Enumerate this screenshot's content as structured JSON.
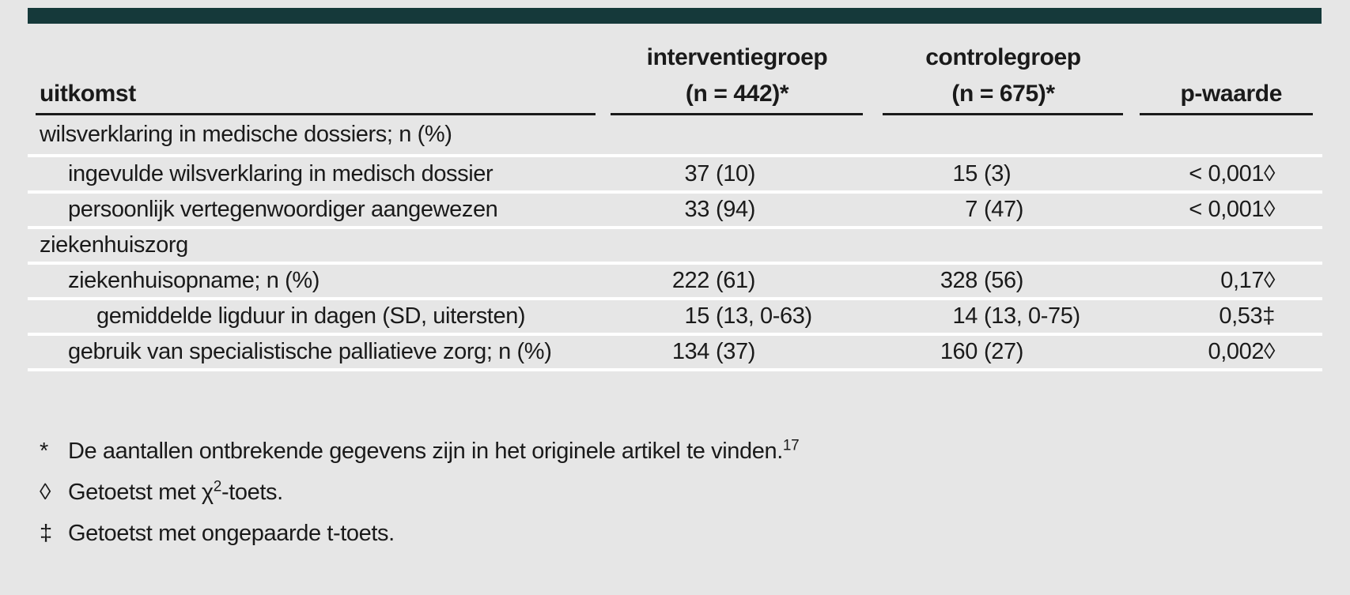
{
  "page": {
    "background_color": "#e6e6e6",
    "accent_bar_color": "#15393a",
    "text_color": "#1a1a1a",
    "row_separator_color": "#ffffff",
    "header_underline_color": "#1a1a1a"
  },
  "table": {
    "columns": {
      "outcome": "uitkomst",
      "intervention_line1": "interventiegroep",
      "intervention_line2": "(n = 442)*",
      "control_line1": "controlegroep",
      "control_line2": "(n = 675)*",
      "p": "p-waarde"
    },
    "rows": [
      {
        "type": "section",
        "indent": 0,
        "label": "wilsverklaring in medische dossiers; n (%)"
      },
      {
        "type": "data",
        "indent": 1,
        "label": "ingevulde wilsverklaring in medisch dossier",
        "i_num": "37",
        "i_paren": "(10)",
        "c_num": "15",
        "c_paren": "(3)",
        "p": "< 0,001◊"
      },
      {
        "type": "data",
        "indent": 1,
        "label": "persoonlijk vertegenwoordiger aangewezen",
        "i_num": "33",
        "i_paren": "(94)",
        "c_num": "7",
        "c_paren": "(47)",
        "p": "< 0,001◊"
      },
      {
        "type": "section",
        "indent": 0,
        "label": "ziekenhuiszorg"
      },
      {
        "type": "data",
        "indent": 1,
        "label": "ziekenhuisopname; n (%)",
        "i_num": "222",
        "i_paren": "(61)",
        "c_num": "328",
        "c_paren": "(56)",
        "p": "0,17◊"
      },
      {
        "type": "data",
        "indent": 2,
        "label": "gemiddelde ligduur in dagen (SD, uitersten)",
        "i_num": "15",
        "i_paren": "(13, 0-63)",
        "c_num": "14",
        "c_paren": "(13, 0-75)",
        "p": "0,53‡"
      },
      {
        "type": "data",
        "indent": 1,
        "label": "gebruik van specialistische palliatieve zorg; n (%)",
        "i_num": "134",
        "i_paren": "(37)",
        "c_num": "160",
        "c_paren": "(27)",
        "p": "0,002◊"
      }
    ]
  },
  "footnotes": [
    {
      "marker": "*",
      "text": "De aantallen ontbrekende gegevens zijn in het originele artikel te vinden.",
      "sup": "17",
      "post": ""
    },
    {
      "marker": "◊",
      "text": "Getoetst met χ",
      "sup": "2",
      "post": "-toets."
    },
    {
      "marker": "‡",
      "text": "Getoetst met ongepaarde t-toets.",
      "sup": "",
      "post": ""
    }
  ]
}
